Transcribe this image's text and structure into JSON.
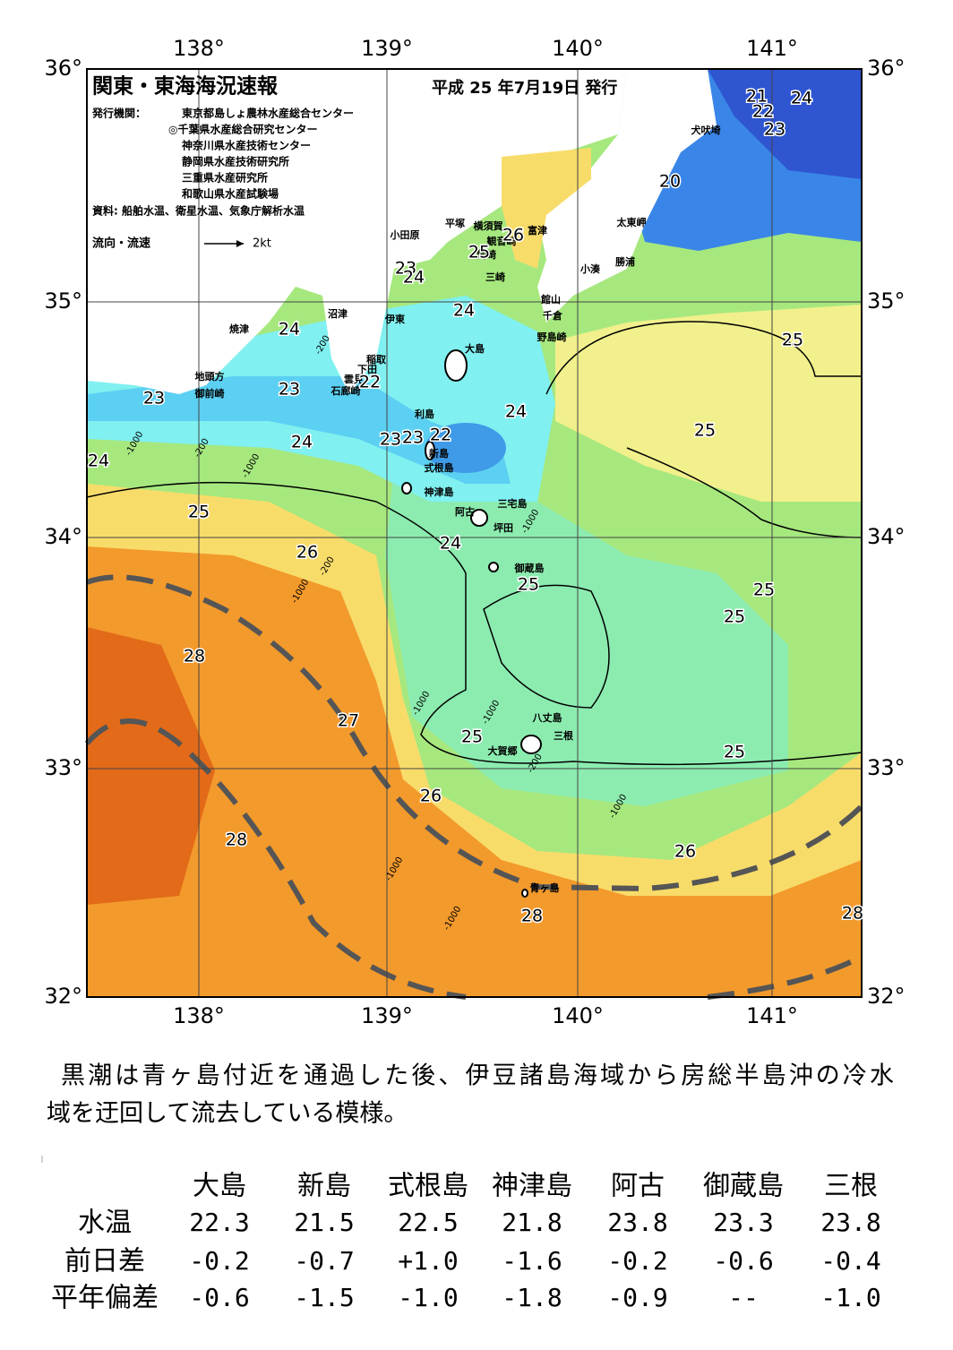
{
  "map": {
    "title": "関東・東海海況速報",
    "date": "平成 25 年7月19日 発行",
    "publisher_label": "発行機関：",
    "publishers": [
      "東京都島しょ農林水産総合センター",
      "◎千葉県水産総合研究センター",
      "神奈川県水産技術センター",
      "静岡県水産技術研究所",
      "三重県水産研究所",
      "和歌山県水産試験場"
    ],
    "source": "資料: 船舶水温、衛星水温、気象庁解析水温",
    "legend_label": "流向・流速",
    "legend_speed": "2kt",
    "lon_labels": [
      "138°",
      "139°",
      "140°",
      "141°"
    ],
    "lat_labels": [
      "36°",
      "35°",
      "34°",
      "33°",
      "32°"
    ],
    "place_names": [
      "犬吠埼",
      "太東岬",
      "富津",
      "勝浦",
      "小湊",
      "平塚",
      "横須賀",
      "小田原",
      "観音崎",
      "剣崎",
      "三崎",
      "館山",
      "千倉",
      "沼津",
      "伊東",
      "野島崎",
      "焼津",
      "大島",
      "稲取",
      "下田",
      "雲見",
      "石廊崎",
      "地頭方",
      "御前崎",
      "利島",
      "新島",
      "式根島",
      "神津島",
      "三宅島",
      "阿古",
      "坪田",
      "御蔵島",
      "八丈島",
      "三根",
      "大賀郷",
      "青ヶ島"
    ],
    "temperature_labels": [
      "21",
      "24",
      "22",
      "23",
      "20",
      "26",
      "25",
      "23",
      "24",
      "24",
      "24",
      "25",
      "23",
      "22",
      "23",
      "24",
      "25",
      "23",
      "23",
      "22",
      "24",
      "24",
      "25",
      "24",
      "26",
      "25",
      "25",
      "25",
      "28",
      "27",
      "25",
      "25",
      "26",
      "28",
      "26",
      "28",
      "28"
    ],
    "depth_labels": [
      "-200",
      "-1000",
      "-200",
      "-1000",
      "-200",
      "-1000",
      "-1000",
      "-1000",
      "-1000",
      "-200",
      "-1000",
      "-1000",
      "-1000"
    ]
  },
  "description": [
    "黒潮は青ヶ島付近を通過した後、伊豆諸島海域から房総半島沖の冷水",
    "域を迂回して流去している模様。"
  ],
  "table": {
    "header": [
      "大島",
      "新島",
      "式根島",
      "神津島",
      "阿古",
      "御蔵島",
      "三根"
    ],
    "rows": [
      {
        "label": "水温",
        "values": [
          "22.3",
          "21.5",
          "22.5",
          "21.8",
          "23.8",
          "23.3",
          "23.8"
        ]
      },
      {
        "label": "前日差",
        "values": [
          "-0.2",
          "-0.7",
          "+1.0",
          "-1.6",
          "-0.2",
          "-0.6",
          "-0.4"
        ]
      },
      {
        "label": "平年偏差",
        "values": [
          "-0.6",
          "-1.5",
          "-1.0",
          "-1.8",
          "-0.9",
          "--",
          "-1.0"
        ]
      }
    ]
  }
}
